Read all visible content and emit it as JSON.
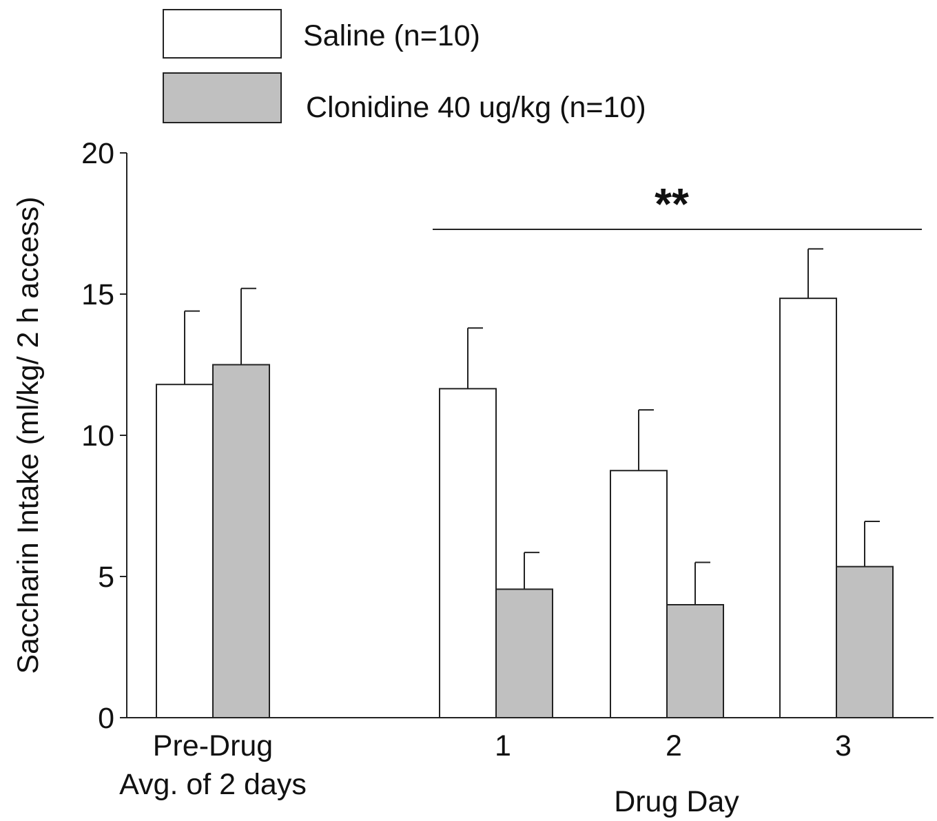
{
  "chart_data": {
    "type": "bar",
    "title": "",
    "ylabel": "Saccharin Intake (ml/kg/ 2 h access)",
    "xlabel": "Drug Day",
    "ylim": [
      0,
      20
    ],
    "yticks": [
      0,
      5,
      10,
      15,
      20
    ],
    "categories": [
      {
        "label_lines": [
          "Pre-Drug",
          "Avg. of 2 days"
        ]
      },
      {
        "label_lines": [
          "1"
        ]
      },
      {
        "label_lines": [
          "2"
        ]
      },
      {
        "label_lines": [
          "3"
        ]
      }
    ],
    "series": [
      {
        "name": "Saline (n=10)",
        "color": "#ffffff",
        "values": [
          11.8,
          11.65,
          8.75,
          14.85
        ],
        "errors": [
          2.6,
          2.15,
          2.15,
          1.75
        ]
      },
      {
        "name": "Clonidine 40 ug/kg (n=10)",
        "color": "#c0c0c0",
        "values": [
          12.5,
          4.55,
          4.0,
          5.35
        ],
        "errors": [
          2.7,
          1.3,
          1.5,
          1.6
        ]
      }
    ],
    "significance": {
      "label": "**",
      "categories": [
        1,
        2,
        3
      ]
    },
    "legend": {
      "placement": "top"
    },
    "grid": false
  }
}
